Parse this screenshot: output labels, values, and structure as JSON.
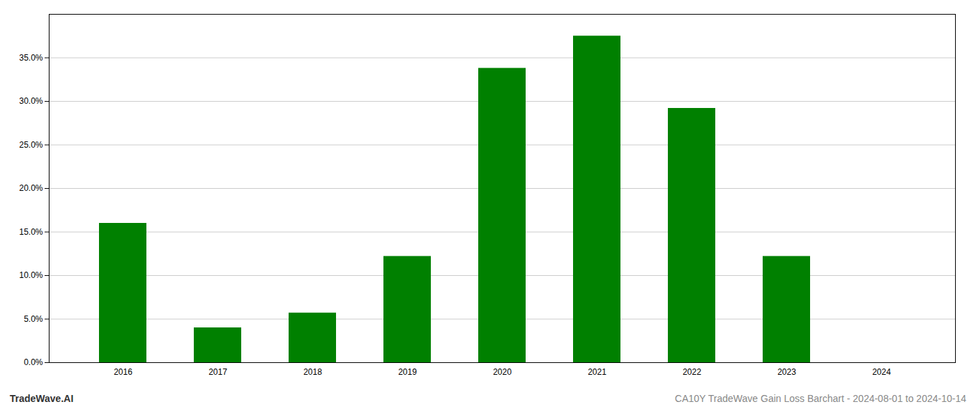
{
  "chart_data": {
    "type": "bar",
    "categories": [
      "2016",
      "2017",
      "2018",
      "2019",
      "2020",
      "2021",
      "2022",
      "2023",
      "2024"
    ],
    "values": [
      0.16,
      0.04,
      0.057,
      0.122,
      0.338,
      0.375,
      0.292,
      0.122,
      0.0
    ],
    "color": "#008000",
    "ylim": [
      0,
      0.4
    ],
    "yticks": [
      {
        "value": 0.0,
        "label": "0.0%"
      },
      {
        "value": 0.05,
        "label": "5.0%"
      },
      {
        "value": 0.1,
        "label": "10.0%"
      },
      {
        "value": 0.15,
        "label": "15.0%"
      },
      {
        "value": 0.2,
        "label": "20.0%"
      },
      {
        "value": 0.25,
        "label": "25.0%"
      },
      {
        "value": 0.3,
        "label": "30.0%"
      },
      {
        "value": 0.35,
        "label": "35.0%"
      }
    ],
    "grid": true,
    "annotations": [
      "TradeWave.AI",
      "CA10Y TradeWave Gain Loss Barchart - 2024-08-01 to 2024-10-14"
    ]
  }
}
